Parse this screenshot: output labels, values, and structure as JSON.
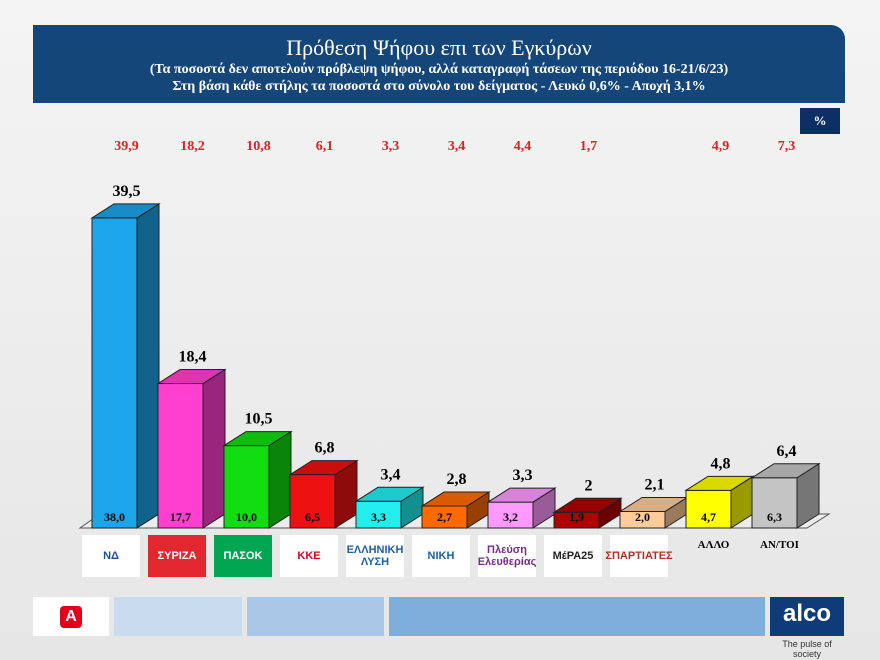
{
  "header": {
    "title": "Πρόθεση Ψήφου επι των Εγκύρων",
    "subtitle1": "(Τα ποσοστά δεν αποτελούν πρόβλεψη ψήφου, αλλά καταγραφή τάσεων της περιόδου  16-21/6/23)",
    "subtitle2": "Στη βάση κάθε στήλης τα ποσοστά στο σύνολο του δείγματος - Λευκό 0,6% - Αποχή 3,1%"
  },
  "unit_badge": "%",
  "chart_data": {
    "type": "bar",
    "title": "Πρόθεση Ψήφου επι των Εγκύρων",
    "ylim": [
      0,
      40
    ],
    "grid": false,
    "categories": [
      "ΝΔ",
      "ΣΥΡΙΖΑ",
      "ΠΑΣΟΚ",
      "ΚΚΕ",
      "Ελληνική Λύση",
      "Νίκη",
      "Πλεύση Ελευθερίας",
      "ΜέΡΑ25",
      "Σπαρτιάτες",
      "ΑΛΛΟ",
      "ΑΝ/ΤΟΙ"
    ],
    "category_labels": [
      "",
      "",
      "",
      "",
      "",
      "",
      "",
      "",
      "",
      "ΑΛΛΟ",
      "ΑΝ/ΤΟΙ"
    ],
    "series": [
      {
        "values": [
          39.5,
          18.4,
          10.5,
          6.8,
          3.4,
          2.8,
          3.3,
          2,
          2.1,
          4.8,
          6.4
        ],
        "labels": [
          "39,5",
          "18,4",
          "10,5",
          "6,8",
          "3,4",
          "2,8",
          "3,3",
          "2",
          "2,1",
          "4,8",
          "6,4"
        ]
      },
      {
        "values": [
          38.0,
          17.7,
          10.0,
          6.5,
          3.3,
          2.7,
          3.2,
          1.9,
          2.0,
          4.7,
          6.3
        ],
        "labels": [
          "38,0",
          "17,7",
          "10,0",
          "6,5",
          "3,3",
          "2,7",
          "3,2",
          "1,9",
          "2,0",
          "4,7",
          "6,3"
        ]
      },
      {
        "values": [
          39.9,
          18.2,
          10.8,
          6.1,
          3.3,
          3.4,
          4.4,
          1.7,
          null,
          4.9,
          7.3
        ],
        "labels": [
          "39,9",
          "18,2",
          "10,8",
          "6,1",
          "3,3",
          "3,4",
          "4,4",
          "1,7",
          "",
          "4,9",
          "7,3"
        ],
        "color": "#e02020"
      }
    ],
    "colors": [
      "#1ca5ea",
      "#ff3fcf",
      "#11dd11",
      "#ee1111",
      "#22eeee",
      "#ff6a00",
      "#ff99ff",
      "#b00000",
      "#ffcc99",
      "#ffff00",
      "#c4c4c4"
    ]
  },
  "logos": [
    {
      "text": "ΝΔ",
      "bg": "#ffffff",
      "fg": "#1d4f9a"
    },
    {
      "text": "ΣΥΡΙΖΑ",
      "bg": "#e2282e",
      "fg": "#ffffff"
    },
    {
      "text": "ΠΑΣΟΚ",
      "bg": "#00a651",
      "fg": "#ffffff"
    },
    {
      "text": "ΚΚΕ",
      "bg": "#ffffff",
      "fg": "#e2001a"
    },
    {
      "text": "ΕΛΛΗΝΙΚΗ ΛΥΣΗ",
      "bg": "#ffffff",
      "fg": "#1d5fa0"
    },
    {
      "text": "ΝΙΚΗ",
      "bg": "#ffffff",
      "fg": "#1d5fa0"
    },
    {
      "text": "Πλεύση Ελευθερίας",
      "bg": "#ffffff",
      "fg": "#7a2a8a"
    },
    {
      "text": "ΜέΡΑ25",
      "bg": "#ffffff",
      "fg": "#222222"
    },
    {
      "text": "ΣΠΑΡΤΙΑΤΕΣ",
      "bg": "#ffffff",
      "fg": "#b03020"
    }
  ],
  "footer": {
    "brand": "alco",
    "tagline": "The pulse of society",
    "news_logo": "ALPHA NEWS"
  }
}
